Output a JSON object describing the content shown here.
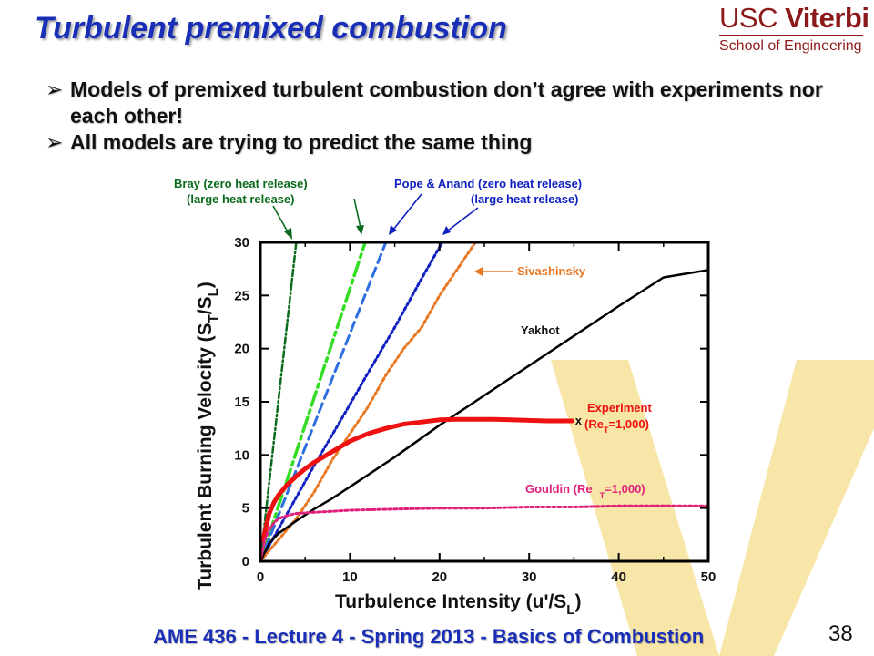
{
  "slide": {
    "title": "Turbulent premixed combustion",
    "logo": {
      "line1_a": "USC",
      "line1_b": "Viterbi",
      "line2": "School of Engineering"
    },
    "bullets": [
      "Models of premixed turbulent combustion don’t agree with experiments nor each other!",
      "All models are trying to predict the same thing"
    ],
    "footer": "AME 436 - Lecture 4 - Spring 2013 - Basics of Combustion",
    "page_number": "38"
  },
  "colors": {
    "title": "#1a2fb8",
    "logo": "#8c1a1a",
    "watermark": "#f8e6a8",
    "bray_zero": "#0b6b1d",
    "bray_large": "#33dd22",
    "pope_zero": "#2d6fe0",
    "pope_large": "#1020c0",
    "sivashinsky": "#e87722",
    "yakhot": "#000000",
    "experiment": "#ee1111",
    "gouldin": "#e0207a"
  },
  "chart_data": {
    "type": "line",
    "xlabel": "Turbulence Intensity (u'/S",
    "xlabel_sub": "L",
    "xlabel_end": ")",
    "ylabel": "Turbulent Burning Velocity (S",
    "ylabel_sub1": "T",
    "ylabel_mid": "/S",
    "ylabel_sub2": "L",
    "ylabel_end": ")",
    "xlim": [
      0,
      50
    ],
    "ylim": [
      0,
      30
    ],
    "xticks": [
      0,
      10,
      20,
      30,
      40,
      50
    ],
    "yticks": [
      0,
      5,
      10,
      15,
      20,
      25,
      30
    ],
    "grid": false,
    "series": [
      {
        "key": "bray_zero",
        "style": "dashdot",
        "x": [
          0,
          4
        ],
        "y": [
          0,
          30
        ]
      },
      {
        "key": "bray_large",
        "style": "longdashdot",
        "x": [
          0,
          11.7
        ],
        "y": [
          0,
          30
        ]
      },
      {
        "key": "pope_zero",
        "style": "dash",
        "x": [
          0,
          14
        ],
        "y": [
          0,
          30
        ]
      },
      {
        "key": "pope_large",
        "style": "dot",
        "x": [
          0,
          3,
          6,
          9,
          12,
          15,
          18,
          20.3
        ],
        "y": [
          0,
          4.5,
          9,
          13.3,
          17.7,
          22,
          26.6,
          30
        ]
      },
      {
        "key": "sivashinsky",
        "style": "dot",
        "x": [
          0,
          1,
          2,
          3,
          4,
          6,
          8,
          10,
          12,
          14,
          16,
          18,
          20,
          22,
          24
        ],
        "y": [
          0,
          1,
          2,
          3,
          4,
          6.5,
          9.5,
          12,
          14.5,
          17.5,
          20,
          22,
          25,
          27.5,
          30
        ]
      },
      {
        "key": "yakhot",
        "style": "solid",
        "x": [
          0,
          1,
          2,
          4,
          6,
          8,
          10,
          15,
          20,
          25,
          30,
          35,
          40,
          45,
          50
        ],
        "y": [
          0,
          1.7,
          2.6,
          3.8,
          4.9,
          5.9,
          7,
          9.8,
          12.8,
          15.6,
          18.4,
          21.2,
          24,
          26.7,
          27.4
        ]
      },
      {
        "key": "experiment",
        "style": "thick",
        "x": [
          0.3,
          0.7,
          1,
          1.5,
          2,
          3,
          4,
          5,
          6,
          7,
          8,
          9,
          10,
          12,
          14,
          16,
          18,
          20,
          22,
          24,
          26,
          28,
          30,
          32,
          34.8
        ],
        "y": [
          2,
          3.5,
          4.5,
          5.5,
          6.2,
          7.2,
          8,
          8.7,
          9.3,
          9.8,
          10.3,
          10.8,
          11.3,
          12,
          12.5,
          12.9,
          13.1,
          13.3,
          13.35,
          13.35,
          13.35,
          13.3,
          13.25,
          13.2,
          13.2
        ]
      },
      {
        "key": "gouldin",
        "style": "dot",
        "x": [
          0,
          0.5,
          1,
          1.5,
          2,
          3,
          4,
          6,
          8,
          10,
          15,
          20,
          25,
          30,
          35,
          40,
          45,
          50
        ],
        "y": [
          0,
          2,
          3,
          3.6,
          4,
          4.3,
          4.5,
          4.6,
          4.7,
          4.8,
          4.9,
          5,
          5,
          5.1,
          5.1,
          5.2,
          5.2,
          5.2
        ]
      }
    ],
    "marker": {
      "label": "x",
      "x": 35.5,
      "y": 13.2
    },
    "annotations": {
      "bray_1": "Bray (zero heat release)",
      "bray_2": "(large heat release)",
      "pope_1": "Pope & Anand (zero heat release)",
      "pope_2": "(large heat release)",
      "sivashinsky": "Sivashinsky",
      "yakhot": "Yakhot",
      "experiment_1": "Experiment",
      "experiment_2a": "(Re",
      "experiment_2sub": "T",
      "experiment_2b": "=1,000)",
      "gouldin_a": "Gouldin (Re",
      "gouldin_sub": "T",
      "gouldin_b": "=1,000)"
    }
  }
}
